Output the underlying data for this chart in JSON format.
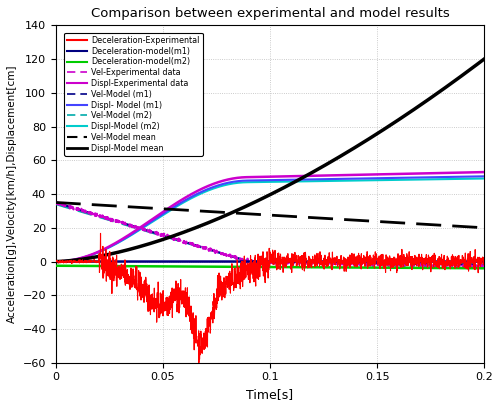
{
  "title": "Comparison between experimental and model results",
  "xlabel": "Time[s]",
  "ylabel": "Acceleration[g],Velocity[km/h],Displacement[cm]",
  "xlim": [
    0,
    0.2
  ],
  "ylim": [
    -60,
    140
  ],
  "yticks": [
    -60,
    -40,
    -20,
    0,
    20,
    40,
    60,
    80,
    100,
    120,
    140
  ],
  "xticks": [
    0,
    0.05,
    0.1,
    0.15,
    0.2
  ],
  "colors": {
    "decel_exp": "#FF0000",
    "decel_m1": "#000080",
    "decel_m2": "#00CC00",
    "vel_exp": "#CC00CC",
    "displ_exp": "#CC00CC",
    "vel_m1": "#000080",
    "displ_m1": "#0000FF",
    "vel_m2": "#008888",
    "displ_m2": "#00CCCC",
    "vel_mean": "#000000",
    "displ_mean": "#000000"
  },
  "legend_labels": [
    "Deceleration-Experimental",
    "Deceleration-model(m1)",
    "Deceleration-model(m2)",
    "Vel-Experimental data",
    "Displ-Experimental data",
    "Vel-Model (m1)",
    "Displ- Model (m1)",
    "Vel-Model (m2)",
    "Displ-Model (m2)",
    "Vel-Model mean",
    "Displ-Model mean"
  ]
}
